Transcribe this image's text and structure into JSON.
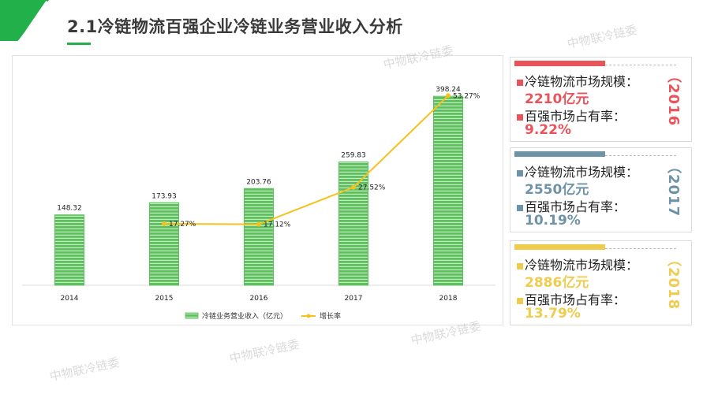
{
  "slide": {
    "title": "2.1冷链物流百强企业冷链业务营业收入分析",
    "watermark": "中物联冷链委"
  },
  "colors": {
    "bar": "#5cc15c",
    "line": "#f5c21b",
    "card_2016": "#e8545a",
    "card_2017": "#6e93a6",
    "card_2018": "#f0cc4e",
    "brand_green": "#22b04b"
  },
  "cards": [
    {
      "year": "（2016",
      "market_label": "冷链物流市场规模：",
      "market_value": "2210亿元",
      "share_label": "百强市场占有率：",
      "share_value": "9.22%"
    },
    {
      "year": "（2017",
      "market_label": "冷链物流市场规模：",
      "market_value": "2550亿元",
      "share_label": "百强市场占有率：",
      "share_value": "10.19%"
    },
    {
      "year": "（2018",
      "market_label": "冷链物流市场规模：",
      "market_value": "2886亿元",
      "share_label": "百强市场占有率：",
      "share_value": "13.79%"
    }
  ],
  "chart_data": {
    "type": "bar",
    "categories": [
      "2014",
      "2015",
      "2016",
      "2017",
      "2018"
    ],
    "series": [
      {
        "name": "冷链业务营业收入（亿元）",
        "type": "bar",
        "values": [
          148.32,
          173.93,
          203.76,
          259.83,
          398.24
        ],
        "labels": [
          "148.32",
          "173.93",
          "203.76",
          "259.83",
          "398.24"
        ]
      },
      {
        "name": "增长率",
        "type": "line",
        "values": [
          null,
          17.27,
          17.12,
          27.52,
          53.27
        ],
        "labels": [
          "",
          "17.27%",
          "17.12%",
          "27.52%",
          "53.27%"
        ]
      }
    ],
    "ylim": [
      0,
      450
    ],
    "y2lim": [
      0,
      60
    ],
    "grid": false,
    "legend_position": "bottom"
  }
}
